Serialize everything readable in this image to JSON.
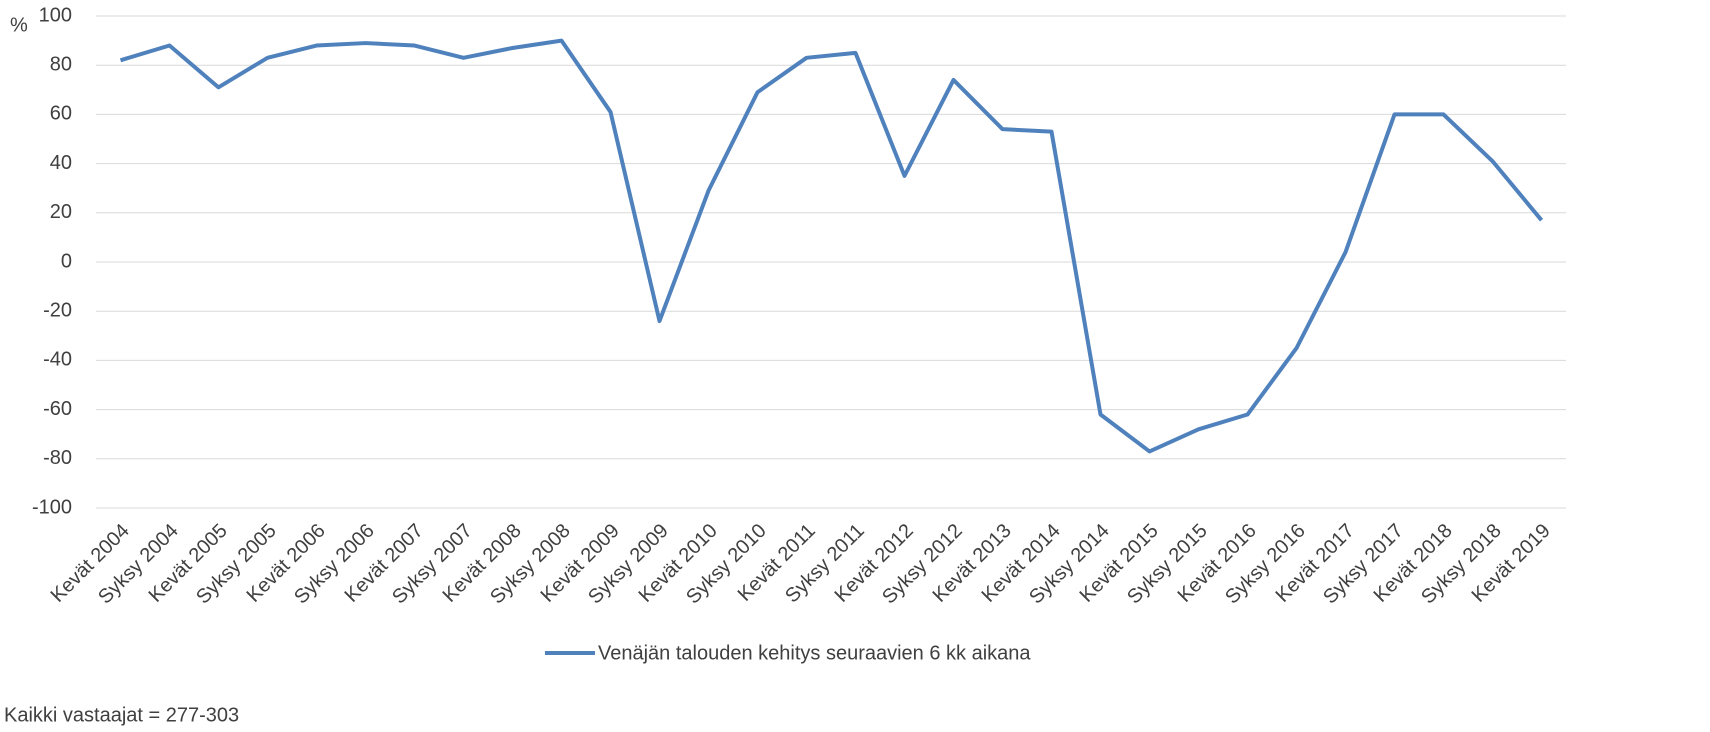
{
  "chart_data": {
    "type": "line",
    "y_axis_label": "%",
    "categories": [
      "Kevät 2004",
      "Syksy 2004",
      "Kevät 2005",
      "Syksy 2005",
      "Kevät 2006",
      "Syksy 2006",
      "Kevät 2007",
      "Syksy 2007",
      "Kevät 2008",
      "Syksy 2008",
      "Kevät 2009",
      "Syksy 2009",
      "Kevät 2010",
      "Syksy 2010",
      "Kevät 2011",
      "Syksy 2011",
      "Kevät 2012",
      "Syksy 2012",
      "Kevät 2013",
      "Kevät 2014",
      "Syksy 2014",
      "Kevät 2015",
      "Syksy 2015",
      "Kevät 2016",
      "Syksy 2016",
      "Kevät 2017",
      "Syksy 2017",
      "Kevät 2018",
      "Syksy 2018",
      "Kevät 2019"
    ],
    "series": [
      {
        "name": "Venäjän talouden kehitys seuraavien 6 kk aikana",
        "color": "#4f81bd",
        "values": [
          82,
          88,
          71,
          83,
          88,
          89,
          88,
          83,
          87,
          90,
          61,
          -24,
          29,
          69,
          83,
          85,
          35,
          74,
          54,
          53,
          -62,
          -77,
          -68,
          -62,
          -35,
          4,
          60,
          60,
          41,
          17
        ]
      }
    ],
    "ylim": [
      -100,
      100
    ],
    "yticks": [
      -100,
      -80,
      -60,
      -40,
      -20,
      0,
      20,
      40,
      60,
      80,
      100
    ],
    "grid": true,
    "legend": "bottom",
    "note": "Kaikki vastaajat = 277-303"
  }
}
